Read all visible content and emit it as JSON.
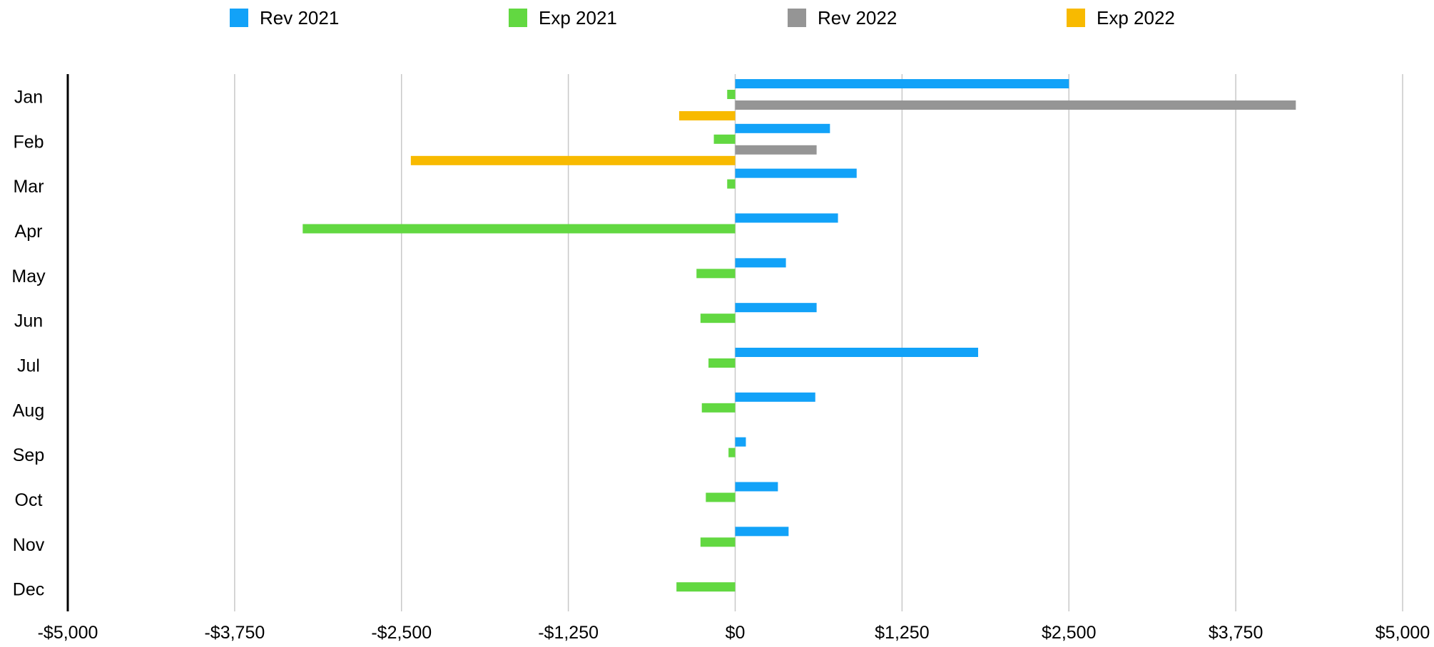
{
  "chart_data": {
    "type": "bar",
    "orientation": "horizontal",
    "categories": [
      "Jan",
      "Feb",
      "Mar",
      "Apr",
      "May",
      "Jun",
      "Jul",
      "Aug",
      "Sep",
      "Oct",
      "Nov",
      "Dec"
    ],
    "series": [
      {
        "name": "Rev 2021",
        "color": "#12A2F8",
        "values": [
          2500,
          710,
          910,
          770,
          380,
          610,
          1820,
          600,
          80,
          320,
          400,
          null
        ]
      },
      {
        "name": "Exp 2021",
        "color": "#62D841",
        "values": [
          -60,
          -160,
          -60,
          -3240,
          -290,
          -260,
          -200,
          -250,
          -50,
          -220,
          -260,
          -440
        ]
      },
      {
        "name": "Rev 2022",
        "color": "#959595",
        "values": [
          4200,
          610,
          null,
          null,
          null,
          null,
          null,
          null,
          null,
          null,
          null,
          null
        ]
      },
      {
        "name": "Exp 2022",
        "color": "#F8BA00",
        "values": [
          -420,
          -2430,
          null,
          null,
          null,
          null,
          null,
          null,
          null,
          null,
          null,
          null
        ]
      }
    ],
    "xlim": [
      -5000,
      5000
    ],
    "xticks": [
      -5000,
      -3750,
      -2500,
      -1250,
      0,
      1250,
      2500,
      3750,
      5000
    ],
    "xtick_labels": [
      "-$5,000",
      "-$3,750",
      "-$2,500",
      "-$1,250",
      "$0",
      "$1,250",
      "$2,500",
      "$3,750",
      "$5,000"
    ],
    "grid": true,
    "legend_position": "top",
    "title": "",
    "xlabel": "",
    "ylabel": ""
  }
}
